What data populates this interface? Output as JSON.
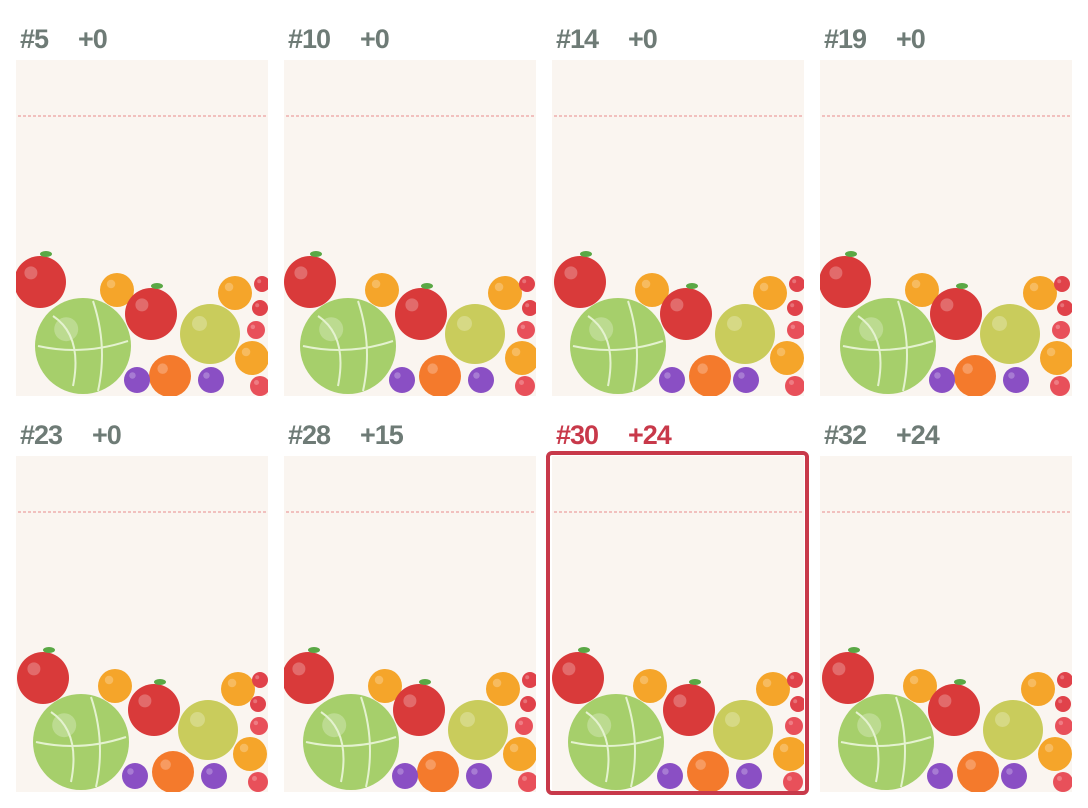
{
  "panels": [
    {
      "rank": "#5",
      "score": "+0",
      "selected": false
    },
    {
      "rank": "#10",
      "score": "+0",
      "selected": false
    },
    {
      "rank": "#14",
      "score": "+0",
      "selected": false
    },
    {
      "rank": "#19",
      "score": "+0",
      "selected": false
    },
    {
      "rank": "#23",
      "score": "+0",
      "selected": false
    },
    {
      "rank": "#28",
      "score": "+15",
      "selected": false
    },
    {
      "rank": "#30",
      "score": "+24",
      "selected": true
    },
    {
      "rank": "#32",
      "score": "+24",
      "selected": false
    }
  ]
}
